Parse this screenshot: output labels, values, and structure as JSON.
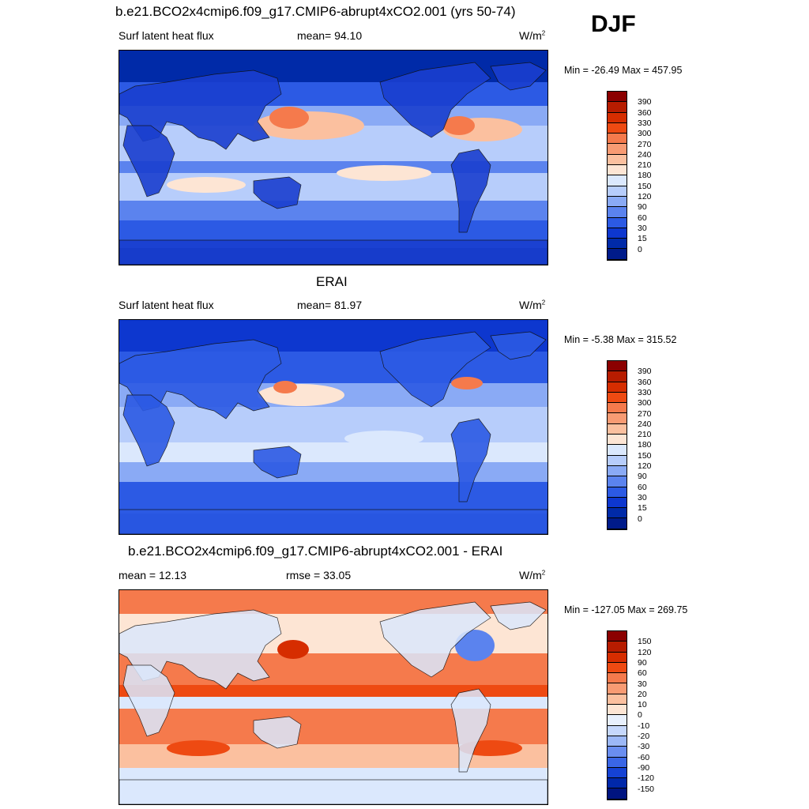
{
  "season_label": "DJF",
  "panels": [
    {
      "title": "b.e21.BCO2x4cmip6.f09_g17.CMIP6-abrupt4xCO2.001 (yrs 50-74)",
      "left_label": "Surf latent heat flux",
      "center_label": "mean=  94.10",
      "units_main": "W/m",
      "units_exp": "2",
      "minmax": "Min = -26.49 Max = 457.95",
      "variant": "model",
      "colorbar": {
        "labels": [
          "390",
          "360",
          "330",
          "300",
          "270",
          "240",
          "210",
          "180",
          "150",
          "120",
          "90",
          "60",
          "30",
          "15",
          "0"
        ],
        "colors": [
          "#8b0000",
          "#b71c00",
          "#d62d00",
          "#ee4a12",
          "#f57a4c",
          "#f89b73",
          "#fbc09f",
          "#fde5d4",
          "#dbe8fd",
          "#b7cdfb",
          "#8aaaf5",
          "#5b83ee",
          "#2c5ae4",
          "#0d37cf",
          "#002aa8",
          "#001b8a"
        ]
      }
    },
    {
      "title": "ERAI",
      "left_label": "Surf latent heat flux",
      "center_label": "mean=  81.97",
      "units_main": "W/m",
      "units_exp": "2",
      "minmax": "Min =  -5.38 Max = 315.52",
      "variant": "obs",
      "colorbar": {
        "labels": [
          "390",
          "360",
          "330",
          "300",
          "270",
          "240",
          "210",
          "180",
          "150",
          "120",
          "90",
          "60",
          "30",
          "15",
          "0"
        ],
        "colors": [
          "#8b0000",
          "#b71c00",
          "#d62d00",
          "#ee4a12",
          "#f57a4c",
          "#f89b73",
          "#fbc09f",
          "#fde5d4",
          "#dbe8fd",
          "#b7cdfb",
          "#8aaaf5",
          "#5b83ee",
          "#2c5ae4",
          "#0d37cf",
          "#002aa8",
          "#001b8a"
        ]
      }
    },
    {
      "title": "b.e21.BCO2x4cmip6.f09_g17.CMIP6-abrupt4xCO2.001 - ERAI",
      "left_label": "mean =  12.13",
      "center_label": "rmse =  33.05",
      "units_main": "W/m",
      "units_exp": "2",
      "minmax": "Min = -127.05 Max = 269.75",
      "variant": "diff",
      "colorbar": {
        "labels": [
          "150",
          "120",
          "90",
          "60",
          "30",
          "20",
          "10",
          "0",
          "-10",
          "-20",
          "-30",
          "-60",
          "-90",
          "-120",
          "-150"
        ],
        "colors": [
          "#8b0000",
          "#b71c00",
          "#d62d00",
          "#ee4a12",
          "#f57a4c",
          "#f89b73",
          "#fbc09f",
          "#fde5d4",
          "#e8f0fd",
          "#c6d8fc",
          "#9cb8f7",
          "#6a8ef0",
          "#3a66e6",
          "#1542d4",
          "#0028aa",
          "#001480"
        ]
      }
    }
  ]
}
